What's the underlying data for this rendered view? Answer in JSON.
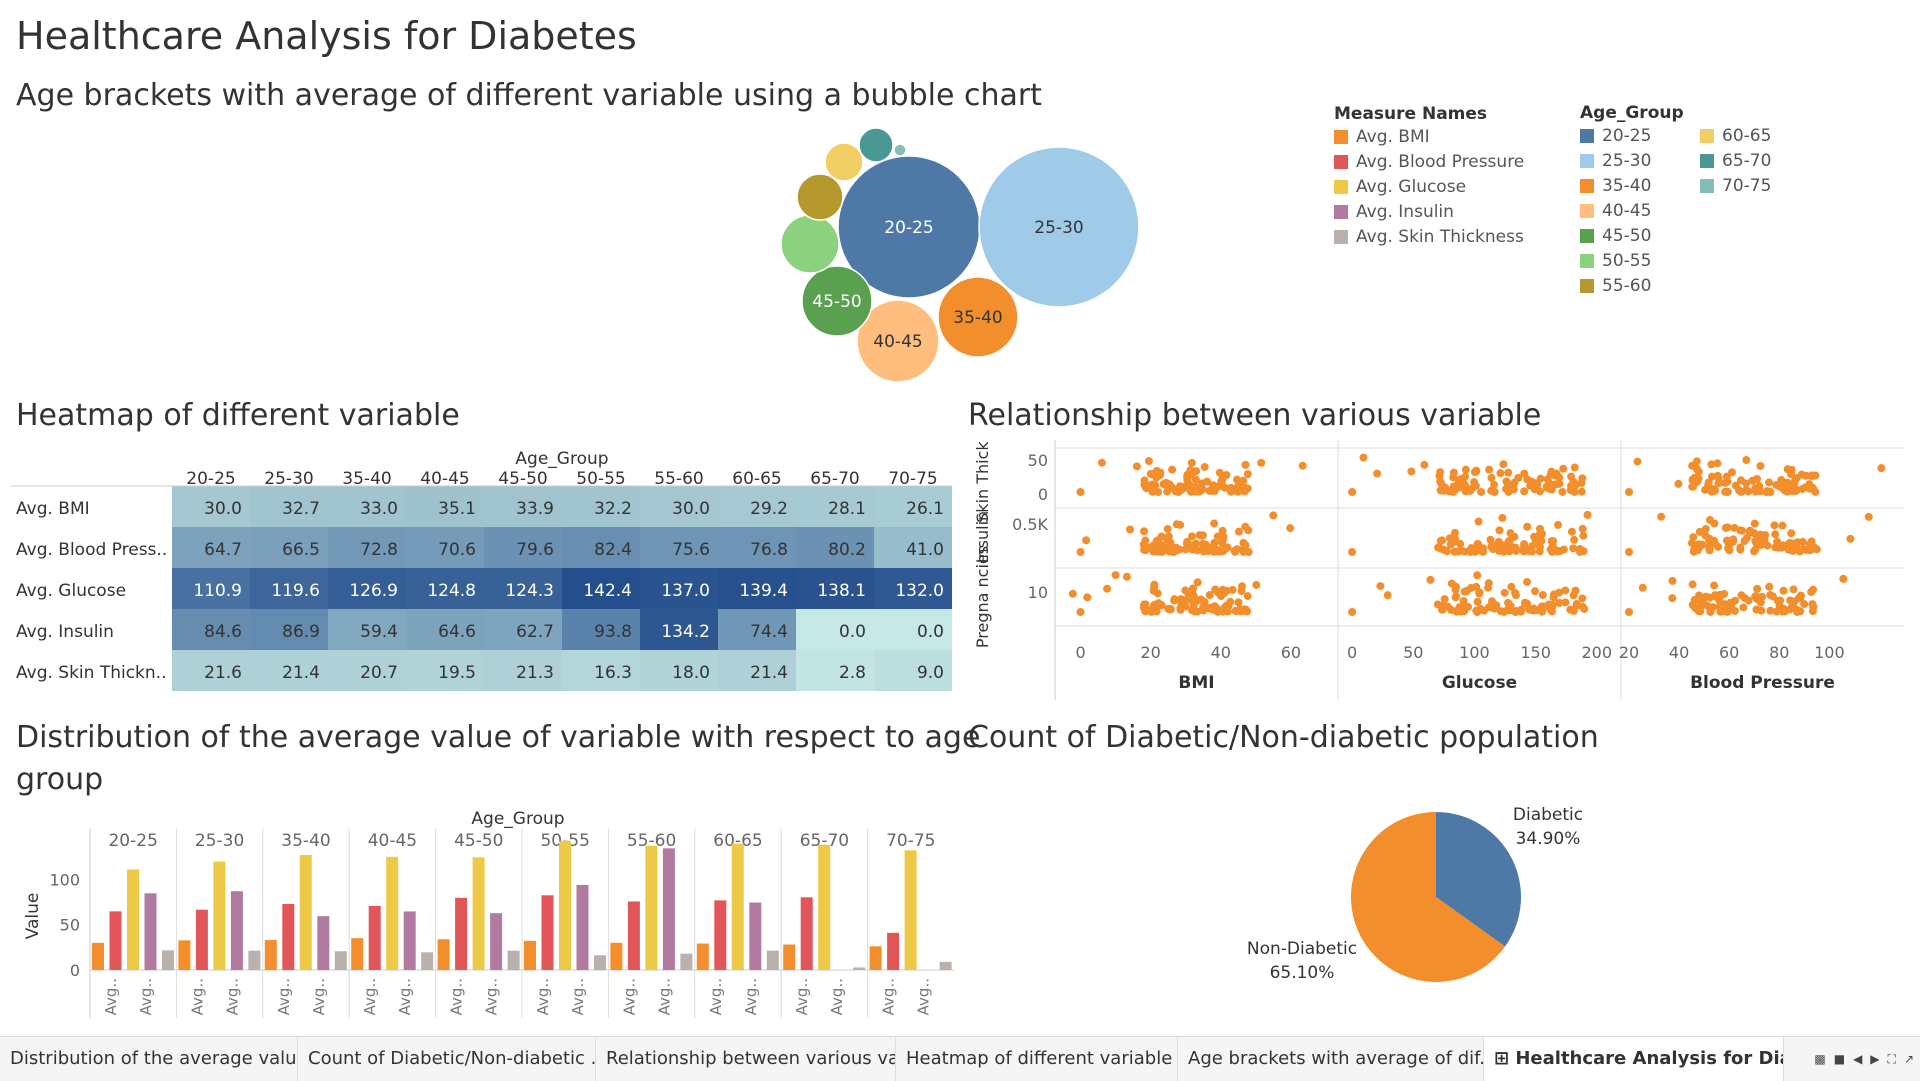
{
  "page_title": "Healthcare Analysis for Diabetes",
  "sections": {
    "bubble": "Age brackets with average of different variable using a bubble chart",
    "heatmap": "Heatmap of different variable",
    "scatter": "Relationship between various variable",
    "bars_line1": "Distribution of the average value of variable with respect to age",
    "bars_line2": "group",
    "pie": "Count of Diabetic/Non-diabetic population"
  },
  "legend": {
    "measure_title": "Measure Names",
    "measures": [
      {
        "label": "Avg. BMI",
        "color": "#f28e2b"
      },
      {
        "label": "Avg. Blood Pressure",
        "color": "#e15759"
      },
      {
        "label": "Avg. Glucose",
        "color": "#edc948"
      },
      {
        "label": "Avg. Insulin",
        "color": "#b07aa1"
      },
      {
        "label": "Avg. Skin Thickness",
        "color": "#bab0ac"
      }
    ],
    "age_title": "Age_Group",
    "ages": [
      {
        "label": "20-25",
        "color": "#4e79a7"
      },
      {
        "label": "25-30",
        "color": "#a0cbe8"
      },
      {
        "label": "35-40",
        "color": "#f28e2b"
      },
      {
        "label": "40-45",
        "color": "#ffbe7d"
      },
      {
        "label": "45-50",
        "color": "#59a14f"
      },
      {
        "label": "50-55",
        "color": "#8cd17d"
      },
      {
        "label": "55-60",
        "color": "#b6992d"
      },
      {
        "label": "60-65",
        "color": "#f1ce63"
      },
      {
        "label": "65-70",
        "color": "#499894"
      },
      {
        "label": "70-75",
        "color": "#86bcb6"
      }
    ]
  },
  "chart_data": [
    {
      "type": "bubble",
      "title": "Age brackets with average of different variable using a bubble chart",
      "bubbles": [
        {
          "label": "20-25",
          "color": "#4e79a7",
          "show_label": true
        },
        {
          "label": "25-30",
          "color": "#a0cbe8",
          "show_label": true
        },
        {
          "label": "35-40",
          "color": "#f28e2b",
          "show_label": true
        },
        {
          "label": "40-45",
          "color": "#ffbe7d",
          "show_label": true
        },
        {
          "label": "45-50",
          "color": "#59a14f",
          "show_label": true
        },
        {
          "label": "50-55",
          "color": "#8cd17d",
          "show_label": false
        },
        {
          "label": "55-60",
          "color": "#b6992d",
          "show_label": false
        },
        {
          "label": "60-65",
          "color": "#f1ce63",
          "show_label": false
        },
        {
          "label": "65-70",
          "color": "#499894",
          "show_label": false
        },
        {
          "label": "70-75",
          "color": "#86bcb6",
          "show_label": false
        }
      ]
    },
    {
      "type": "heatmap",
      "title": "Heatmap of different variable",
      "column_header": "Age_Group",
      "columns": [
        "20-25",
        "25-30",
        "35-40",
        "40-45",
        "45-50",
        "50-55",
        "55-60",
        "60-65",
        "65-70",
        "70-75"
      ],
      "rows": [
        "Avg. BMI",
        "Avg. Blood Press..",
        "Avg. Glucose",
        "Avg. Insulin",
        "Avg. Skin Thickn.."
      ],
      "values": [
        [
          30.0,
          32.7,
          33.0,
          35.1,
          33.9,
          32.2,
          30.0,
          29.2,
          28.1,
          26.1
        ],
        [
          64.7,
          66.5,
          72.8,
          70.6,
          79.6,
          82.4,
          75.6,
          76.8,
          80.2,
          41.0
        ],
        [
          110.9,
          119.6,
          126.9,
          124.8,
          124.3,
          142.4,
          137.0,
          139.4,
          138.1,
          132.0
        ],
        [
          84.6,
          86.9,
          59.4,
          64.6,
          62.7,
          93.8,
          134.2,
          74.4,
          0.0,
          0.0
        ],
        [
          21.6,
          21.4,
          20.7,
          19.5,
          21.3,
          16.3,
          18.0,
          21.4,
          2.8,
          9.0
        ]
      ]
    },
    {
      "type": "scatter",
      "title": "Relationship between various variable",
      "row_labels": [
        "Skin Thick..",
        "Insulin",
        "Pregna ncies"
      ],
      "row_ticks": [
        [
          "0",
          "50"
        ],
        [
          "0.5K"
        ],
        [
          "10"
        ]
      ],
      "columns": [
        {
          "xlabel": "BMI",
          "ticks": [
            0,
            20,
            40,
            60
          ],
          "xlim": [
            -5,
            70
          ]
        },
        {
          "xlabel": "Glucose",
          "ticks": [
            0,
            50,
            100,
            150,
            200
          ],
          "xlim": [
            -5,
            210
          ]
        },
        {
          "xlabel": "Blood Pressure",
          "ticks": [
            20,
            40,
            60,
            80,
            100
          ],
          "xlim": [
            20,
            125
          ]
        }
      ],
      "color": "#f28e2b"
    },
    {
      "type": "bar",
      "title": "Distribution of the average value of variable with respect to age group",
      "column_header": "Age_Group",
      "categories": [
        "20-25",
        "25-30",
        "35-40",
        "40-45",
        "45-50",
        "50-55",
        "55-60",
        "60-65",
        "65-70",
        "70-75"
      ],
      "ylabel": "Value",
      "yticks": [
        0,
        50,
        100
      ],
      "ylim": [
        0,
        150
      ],
      "x_tick_label": "Avg..",
      "series": [
        {
          "name": "Avg. BMI",
          "color": "#f28e2b",
          "values": [
            30.0,
            32.7,
            33.0,
            35.1,
            33.9,
            32.2,
            30.0,
            29.2,
            28.1,
            26.1
          ]
        },
        {
          "name": "Avg. Blood Pressure",
          "color": "#e15759",
          "values": [
            64.7,
            66.5,
            72.8,
            70.6,
            79.6,
            82.4,
            75.6,
            76.8,
            80.2,
            41.0
          ]
        },
        {
          "name": "Avg. Glucose",
          "color": "#edc948",
          "values": [
            110.9,
            119.6,
            126.9,
            124.8,
            124.3,
            142.4,
            137.0,
            139.4,
            138.1,
            132.0
          ]
        },
        {
          "name": "Avg. Insulin",
          "color": "#b07aa1",
          "values": [
            84.6,
            86.9,
            59.4,
            64.6,
            62.7,
            93.8,
            134.2,
            74.4,
            0.0,
            0.0
          ]
        },
        {
          "name": "Avg. Skin Thickness",
          "color": "#bab0ac",
          "values": [
            21.6,
            21.4,
            20.7,
            19.5,
            21.3,
            16.3,
            18.0,
            21.4,
            2.8,
            9.0
          ]
        }
      ]
    },
    {
      "type": "pie",
      "title": "Count of Diabetic/Non-diabetic population",
      "slices": [
        {
          "label": "Diabetic",
          "value": 34.9,
          "display": "34.90%",
          "color": "#4e79a7"
        },
        {
          "label": "Non-Diabetic",
          "value": 65.1,
          "display": "65.10%",
          "color": "#f28e2b"
        }
      ]
    }
  ],
  "tabs": [
    {
      "label": "Distribution of the average value...",
      "active": false
    },
    {
      "label": "Count of Diabetic/Non-diabetic ...",
      "active": false
    },
    {
      "label": "Relationship between various va...",
      "active": false
    },
    {
      "label": "Heatmap of different variable",
      "active": false
    },
    {
      "label": "Age brackets with average of dif...",
      "active": false
    },
    {
      "label": "Healthcare Analysis for Diab...",
      "active": true
    }
  ],
  "tab_icon": "dashboard-icon"
}
